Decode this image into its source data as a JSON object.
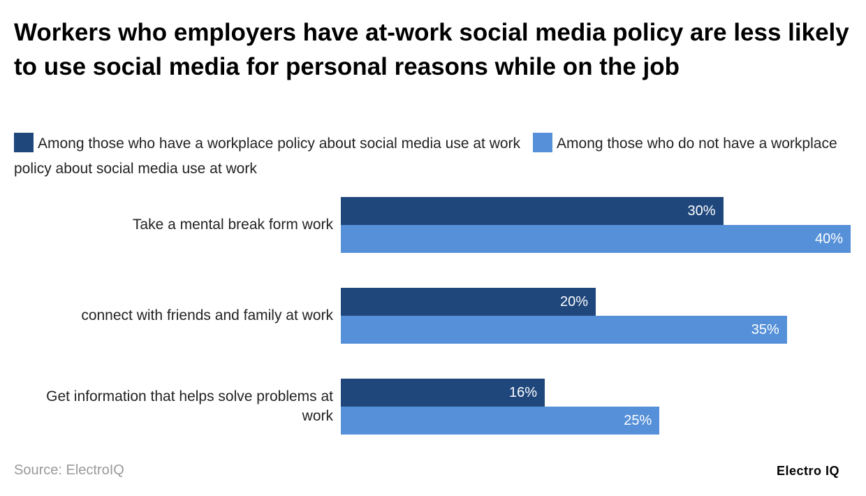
{
  "chart_data": {
    "type": "bar",
    "orientation": "horizontal",
    "title": "Workers who employers have at-work social media policy are less likely to use social media for personal reasons while on the job",
    "categories": [
      "Take a mental break form work",
      "connect with friends and family at work",
      "Get information that helps solve problems at work"
    ],
    "series": [
      {
        "name": "Among those who have a workplace policy about social media use at work",
        "color": "#1f477c",
        "values": [
          30,
          20,
          16
        ],
        "value_labels": [
          "30%",
          "20%",
          "16%"
        ]
      },
      {
        "name": "Among those who do not have a workplace policy about social media use at work",
        "color": "#5590d8",
        "values": [
          40,
          35,
          25
        ],
        "value_labels": [
          "40%",
          "35%",
          "25%"
        ]
      }
    ],
    "source": "Source: ElectroIQ",
    "logo": "Electro IQ"
  }
}
